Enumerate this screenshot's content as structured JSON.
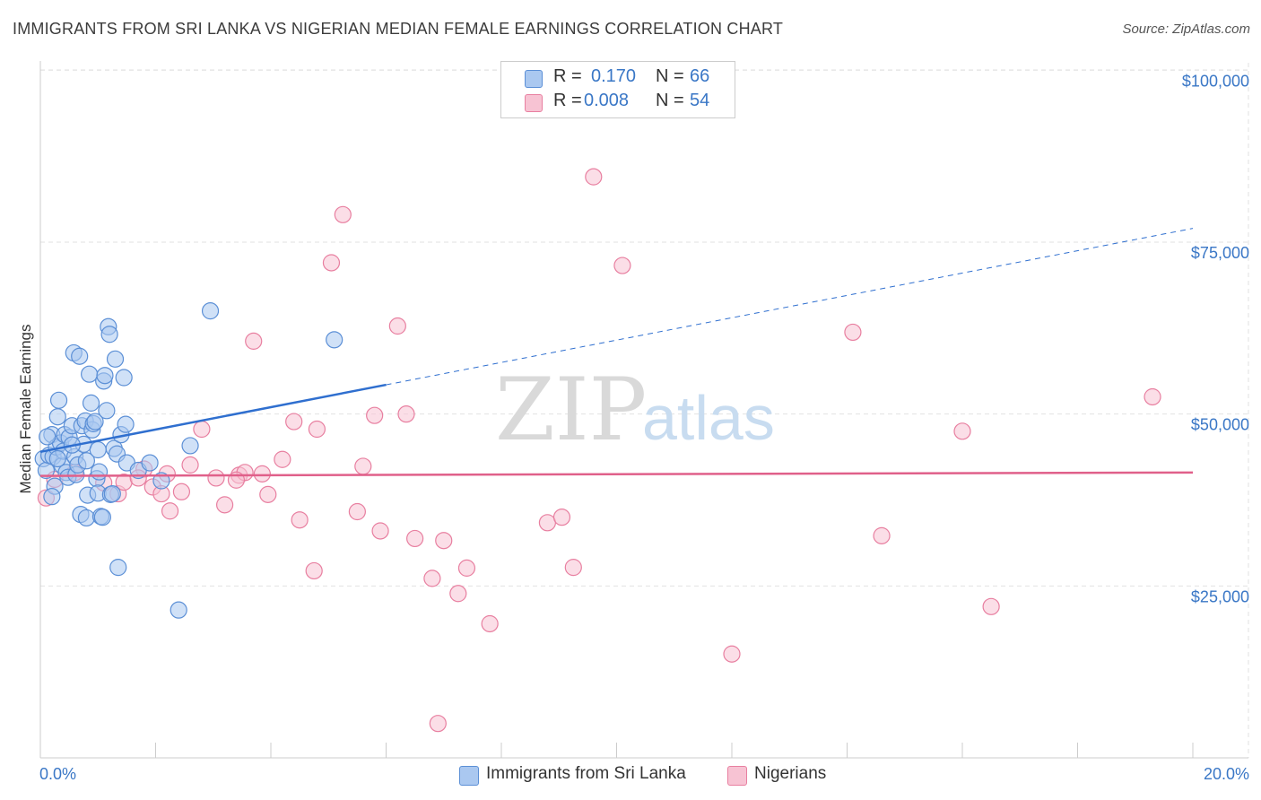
{
  "title": "IMMIGRANTS FROM SRI LANKA VS NIGERIAN MEDIAN FEMALE EARNINGS CORRELATION CHART",
  "source": "Source: ZipAtlas.com",
  "watermark": {
    "part1": "ZIP",
    "part2": "atlas"
  },
  "legend": {
    "r_label": "R =",
    "n_label": "N =",
    "series1": {
      "r": "0.170",
      "n": "66"
    },
    "series2": {
      "r": "0.008",
      "n": "54"
    }
  },
  "bottom_legend": {
    "series1_label": "Immigrants from Sri Lanka",
    "series2_label": "Nigerians"
  },
  "colors": {
    "blue_fill": "#aac8f0",
    "blue_stroke": "#5b8fd6",
    "blue_line": "#2f6fcf",
    "pink_fill": "#f7c3d3",
    "pink_stroke": "#e87fa0",
    "pink_line": "#e0608a",
    "axis_text": "#3a77c6"
  },
  "chart_data": {
    "type": "scatter",
    "title": "IMMIGRANTS FROM SRI LANKA VS NIGERIAN MEDIAN FEMALE EARNINGS CORRELATION CHART",
    "xlabel": "",
    "ylabel": "Median Female Earnings",
    "xlim": [
      0,
      20
    ],
    "ylim": [
      0,
      105000
    ],
    "x_tick_labels": [
      "0.0%",
      "20.0%"
    ],
    "y_ticks": [
      25000,
      50000,
      75000,
      100000
    ],
    "y_tick_labels": [
      "$25,000",
      "$50,000",
      "$75,000",
      "$100,000"
    ],
    "grid": true,
    "series": [
      {
        "name": "Immigrants from Sri Lanka",
        "color": "#5b8fd6",
        "trend": {
          "x0": 0,
          "y0": 44500,
          "x_solid_end": 6.0,
          "x1": 20,
          "y1": 77000
        },
        "points": [
          [
            0.05,
            43500
          ],
          [
            0.1,
            41800
          ],
          [
            0.15,
            44000
          ],
          [
            0.2,
            47000
          ],
          [
            0.22,
            43800
          ],
          [
            0.25,
            39500
          ],
          [
            0.28,
            45200
          ],
          [
            0.3,
            49600
          ],
          [
            0.32,
            52000
          ],
          [
            0.35,
            45800
          ],
          [
            0.38,
            42500
          ],
          [
            0.4,
            44600
          ],
          [
            0.42,
            47000
          ],
          [
            0.45,
            41500
          ],
          [
            0.48,
            40800
          ],
          [
            0.5,
            46600
          ],
          [
            0.55,
            48300
          ],
          [
            0.58,
            58900
          ],
          [
            0.6,
            43800
          ],
          [
            0.62,
            41200
          ],
          [
            0.65,
            42600
          ],
          [
            0.68,
            58400
          ],
          [
            0.7,
            35400
          ],
          [
            0.72,
            48300
          ],
          [
            0.75,
            45600
          ],
          [
            0.78,
            49000
          ],
          [
            0.8,
            34900
          ],
          [
            0.82,
            38200
          ],
          [
            0.85,
            55800
          ],
          [
            0.88,
            51600
          ],
          [
            0.9,
            47700
          ],
          [
            0.92,
            48600
          ],
          [
            0.95,
            48900
          ],
          [
            0.98,
            40600
          ],
          [
            1.0,
            38500
          ],
          [
            1.02,
            41600
          ],
          [
            1.05,
            35100
          ],
          [
            1.08,
            35000
          ],
          [
            1.1,
            54800
          ],
          [
            1.12,
            55600
          ],
          [
            1.15,
            50500
          ],
          [
            1.18,
            62700
          ],
          [
            1.2,
            61600
          ],
          [
            1.22,
            38300
          ],
          [
            1.25,
            38400
          ],
          [
            1.28,
            45000
          ],
          [
            1.3,
            58000
          ],
          [
            1.33,
            44200
          ],
          [
            1.35,
            27700
          ],
          [
            1.4,
            47000
          ],
          [
            1.45,
            55300
          ],
          [
            1.48,
            48500
          ],
          [
            1.5,
            42900
          ],
          [
            1.7,
            41800
          ],
          [
            1.9,
            42900
          ],
          [
            2.1,
            40300
          ],
          [
            2.4,
            21500
          ],
          [
            2.6,
            45400
          ],
          [
            2.95,
            65000
          ],
          [
            5.1,
            60800
          ],
          [
            0.12,
            46700
          ],
          [
            0.3,
            43500
          ],
          [
            0.55,
            45500
          ],
          [
            0.8,
            43200
          ],
          [
            1.0,
            44800
          ],
          [
            0.2,
            38000
          ]
        ]
      },
      {
        "name": "Nigerians",
        "color": "#e87fa0",
        "trend": {
          "x0": 0,
          "y0": 41000,
          "x1": 20,
          "y1": 41500
        },
        "points": [
          [
            0.1,
            37800
          ],
          [
            0.6,
            41500
          ],
          [
            1.1,
            40000
          ],
          [
            1.35,
            38400
          ],
          [
            1.45,
            40100
          ],
          [
            1.8,
            42000
          ],
          [
            1.95,
            39400
          ],
          [
            2.1,
            38400
          ],
          [
            2.2,
            41300
          ],
          [
            2.25,
            35900
          ],
          [
            2.45,
            38700
          ],
          [
            2.6,
            42600
          ],
          [
            2.8,
            47800
          ],
          [
            3.05,
            40700
          ],
          [
            3.2,
            36800
          ],
          [
            3.45,
            41100
          ],
          [
            3.55,
            41500
          ],
          [
            3.7,
            60600
          ],
          [
            3.85,
            41300
          ],
          [
            3.95,
            38300
          ],
          [
            4.2,
            43400
          ],
          [
            4.4,
            48900
          ],
          [
            4.5,
            34600
          ],
          [
            4.75,
            27200
          ],
          [
            4.8,
            47800
          ],
          [
            5.05,
            72000
          ],
          [
            5.25,
            79000
          ],
          [
            5.5,
            35800
          ],
          [
            5.6,
            42400
          ],
          [
            5.8,
            49800
          ],
          [
            5.9,
            33000
          ],
          [
            6.2,
            62800
          ],
          [
            6.35,
            50000
          ],
          [
            6.5,
            31900
          ],
          [
            6.8,
            26100
          ],
          [
            6.9,
            5000
          ],
          [
            7.0,
            31600
          ],
          [
            7.25,
            23900
          ],
          [
            7.4,
            27600
          ],
          [
            7.8,
            19500
          ],
          [
            8.8,
            34200
          ],
          [
            9.05,
            35000
          ],
          [
            9.25,
            27700
          ],
          [
            9.6,
            84500
          ],
          [
            10.1,
            71600
          ],
          [
            12.0,
            15100
          ],
          [
            14.1,
            61900
          ],
          [
            14.6,
            32300
          ],
          [
            16.0,
            47500
          ],
          [
            16.5,
            22000
          ],
          [
            19.3,
            52500
          ],
          [
            0.25,
            40500
          ],
          [
            1.7,
            40700
          ],
          [
            3.4,
            40400
          ]
        ]
      }
    ]
  }
}
